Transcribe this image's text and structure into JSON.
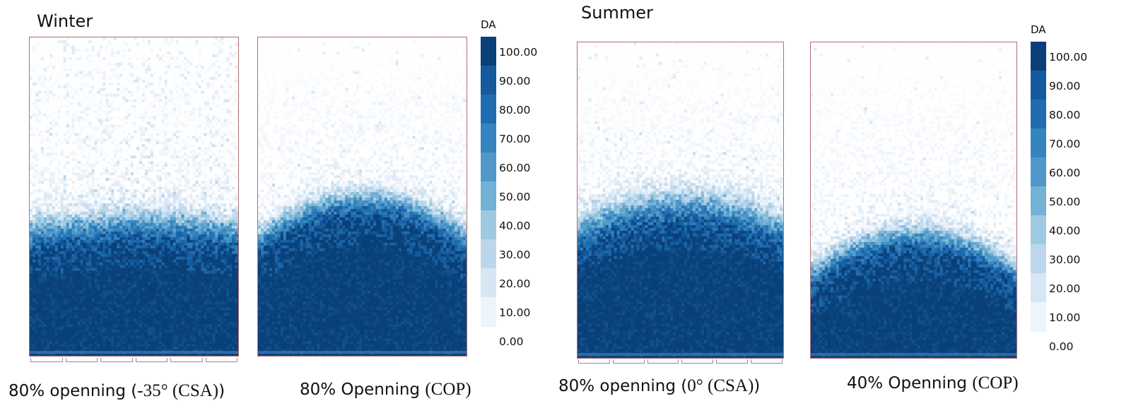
{
  "sections": [
    {
      "title": "Winter"
    },
    {
      "title": "Summer"
    }
  ],
  "chart_data": [
    {
      "type": "heatmap",
      "caption_main": "80% openning (",
      "caption_serif": "-35° (CSA)",
      "caption_end": ")",
      "colorbar_label": "DA",
      "colorbar_ticks": [
        "100.00",
        "90.00",
        "80.00",
        "70.00",
        "60.00",
        "50.00",
        "40.00",
        "30.00",
        "20.00",
        "10.00",
        "0.00"
      ],
      "front_level": 0.6,
      "front_curvature": 0.03,
      "speckle_above_front": 0.22,
      "transition_width": 0.07
    },
    {
      "type": "heatmap",
      "caption_main": "80% Openning ",
      "caption_serif": "(COP)",
      "caption_end": "",
      "colorbar_label": "DA",
      "colorbar_ticks": [
        "100.00",
        "90.00",
        "80.00",
        "70.00",
        "60.00",
        "50.00",
        "40.00",
        "30.00",
        "20.00",
        "10.00",
        "0.00"
      ],
      "front_level": 0.62,
      "front_curvature": 0.12,
      "speckle_above_front": 0.03,
      "transition_width": 0.06
    },
    {
      "type": "heatmap",
      "caption_main": "80% openning (",
      "caption_serif": "0°  (CSA)",
      "caption_end": ")",
      "colorbar_label": "DA",
      "colorbar_ticks": [
        "100.00",
        "90.00",
        "80.00",
        "70.00",
        "60.00",
        "50.00",
        "40.00",
        "30.00",
        "20.00",
        "10.00",
        "0.00"
      ],
      "front_level": 0.58,
      "front_curvature": 0.08,
      "speckle_above_front": 0.05,
      "transition_width": 0.08
    },
    {
      "type": "heatmap",
      "caption_main": "40% Openning ",
      "caption_serif": "(COP)",
      "caption_end": "",
      "colorbar_label": "DA",
      "colorbar_ticks": [
        "100.00",
        "90.00",
        "80.00",
        "70.00",
        "60.00",
        "50.00",
        "40.00",
        "30.00",
        "20.00",
        "10.00",
        "0.00"
      ],
      "front_level": 0.72,
      "front_curvature": 0.12,
      "speckle_above_front": 0.02,
      "transition_width": 0.06
    }
  ],
  "colors": [
    "#ffffff",
    "#eef4fb",
    "#d6e6f4",
    "#bcd7ec",
    "#9ecae1",
    "#74b1d6",
    "#4f98c9",
    "#3484bf",
    "#1f6db0",
    "#155a9c",
    "#0a4078"
  ]
}
